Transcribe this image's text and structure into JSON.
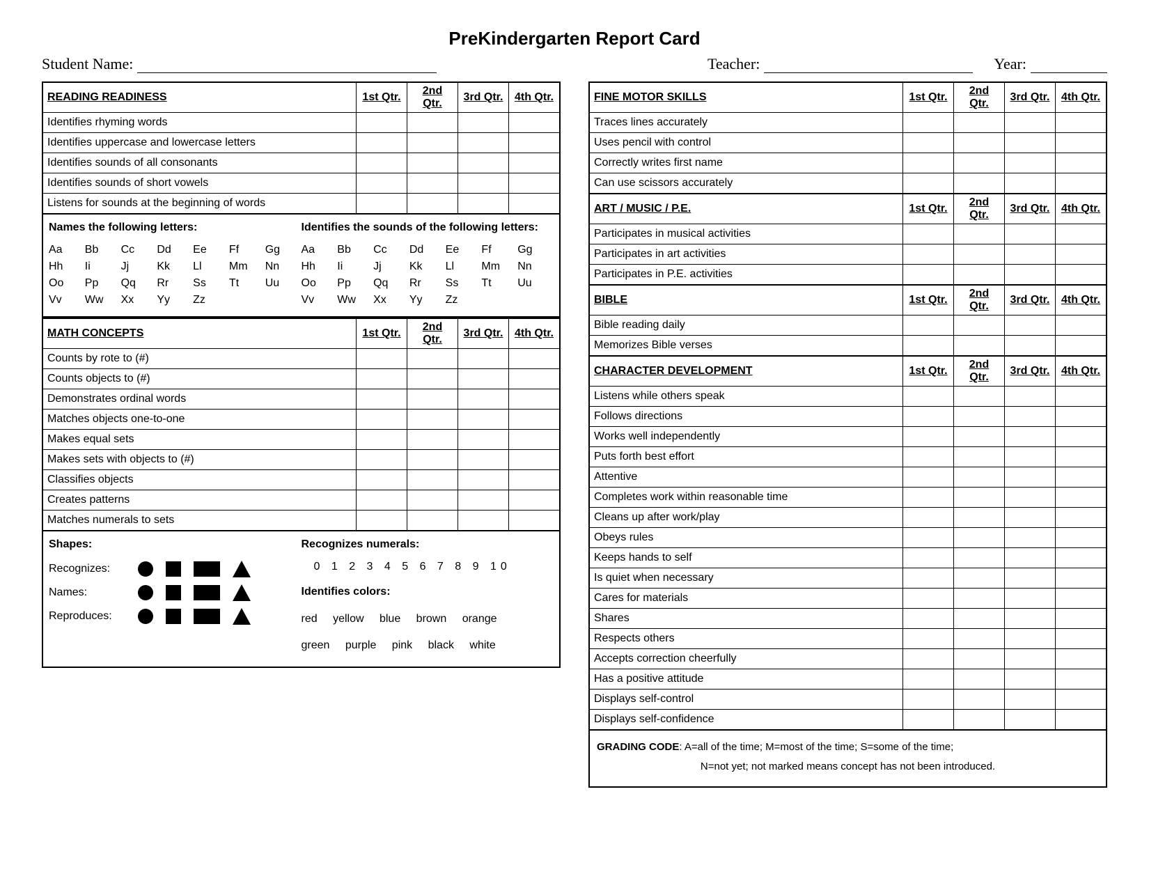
{
  "title": "PreKindergarten Report Card",
  "header": {
    "student_label": "Student Name:",
    "teacher_label": "Teacher:",
    "year_label": "Year:",
    "student_line_w": 430,
    "teacher_line_w": 300,
    "year_line_w": 110
  },
  "qtr_labels": [
    "1st Qtr.",
    "2nd Qtr.",
    "3rd Qtr.",
    "4th Qtr."
  ],
  "reading": {
    "heading": "READING READINESS",
    "rows": [
      "Identifies rhyming words",
      "Identifies uppercase and lowercase letters",
      "Identifies sounds of all consonants",
      "Identifies sounds of short vowels",
      "Listens for sounds at the beginning of words"
    ]
  },
  "letters_box": {
    "left_title": "Names the following letters:",
    "right_title": "Identifies the sounds of  the following letters:",
    "letters": [
      "Aa",
      "Bb",
      "Cc",
      "Dd",
      "Ee",
      "Ff",
      "Gg",
      "Hh",
      "Ii",
      "Jj",
      "Kk",
      "Ll",
      "Mm",
      "Nn",
      "Oo",
      "Pp",
      "Qq",
      "Rr",
      "Ss",
      "Tt",
      "Uu",
      "Vv",
      "Ww",
      "Xx",
      "Yy",
      "Zz"
    ]
  },
  "math": {
    "heading": "MATH CONCEPTS",
    "rows": [
      "Counts by rote to (#)",
      "Counts objects to (#)",
      "Demonstrates ordinal words",
      "Matches objects one-to-one",
      "Makes equal sets",
      "Makes sets with objects to (#)",
      "Classifies objects",
      "Creates patterns",
      "Matches numerals to sets"
    ]
  },
  "shapes_box": {
    "shapes_title": "Shapes:",
    "numerals_title": "Recognizes numerals:",
    "numerals": "0 1 2 3 4 5 6 7 8 9 10",
    "row_labels": [
      "Recognizes:",
      "Names:",
      "Reproduces:"
    ],
    "colors_title": "Identifies colors:",
    "colors_line1": "red yellow blue brown orange",
    "colors_line2": "green purple pink black white"
  },
  "fine_motor": {
    "heading": "FINE MOTOR SKILLS",
    "rows": [
      "Traces lines accurately",
      "Uses pencil with control",
      "Correctly writes first name",
      "Can use scissors accurately"
    ]
  },
  "art": {
    "heading": "ART / MUSIC / P.E.",
    "rows": [
      "Participates in musical activities",
      "Participates in art activities",
      "Participates in P.E. activities"
    ]
  },
  "bible": {
    "heading": "BIBLE",
    "rows": [
      "Bible reading daily",
      "Memorizes Bible verses"
    ]
  },
  "character": {
    "heading": "CHARACTER DEVELOPMENT",
    "rows": [
      "Listens while others speak",
      "Follows directions",
      "Works well independently",
      "Puts forth best effort",
      "Attentive",
      "Completes work within reasonable time",
      "Cleans up after work/play",
      "Obeys rules",
      "Keeps hands to self",
      "Is quiet when necessary",
      "Cares for materials",
      "Shares",
      "Respects others",
      "Accepts correction cheerfully",
      "Has a positive attitude",
      "Displays self-control",
      "Displays self-confidence"
    ]
  },
  "grading": {
    "label": "GRADING CODE",
    "line1": ": A=all of the time; M=most of the time; S=some of the time;",
    "line2": "N=not yet; not marked means concept has not been introduced."
  }
}
